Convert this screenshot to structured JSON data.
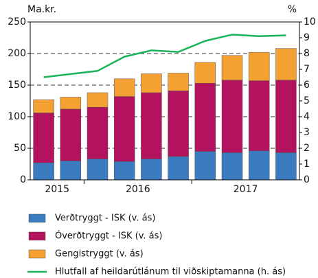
{
  "chart_data": {
    "type": "bar",
    "y_label": "Ma.kr.",
    "y2_label": "%",
    "categories": [
      null,
      null,
      null,
      null,
      null,
      null,
      null,
      null,
      null,
      null
    ],
    "year_groups": [
      {
        "label": "2015",
        "count": 2
      },
      {
        "label": "2016",
        "count": 4
      },
      {
        "label": "2017",
        "count": 4
      }
    ],
    "series": [
      {
        "name": "Verðtryggt - ISK (v. ás)",
        "color": "#3b7cc1",
        "values": [
          27,
          30,
          33,
          29,
          33,
          37,
          45,
          43,
          46,
          43
        ]
      },
      {
        "name": "Óverðtryggt - ISK (v. ás)",
        "color": "#b3135e",
        "values": [
          79,
          82,
          82,
          103,
          105,
          104,
          108,
          115,
          111,
          115
        ]
      },
      {
        "name": "Gengistryggt (v. ás)",
        "color": "#f5a033",
        "values": [
          21,
          19,
          23,
          28,
          30,
          28,
          33,
          39,
          45,
          50
        ]
      },
      {
        "name": "Hlutfall af heildarútlánum til viðskiptamanna (h. ás)",
        "color": "#1db35a",
        "type": "line",
        "axis": "y2",
        "values": [
          6.5,
          6.7,
          6.9,
          7.8,
          8.2,
          8.1,
          8.8,
          9.2,
          9.1,
          9.15
        ]
      }
    ],
    "ylim": [
      0,
      250
    ],
    "yticks": [
      0,
      50,
      100,
      150,
      200,
      250
    ],
    "y2lim": [
      0,
      10
    ],
    "y2ticks": [
      0,
      1,
      2,
      3,
      4,
      5,
      6,
      7,
      8,
      9,
      10
    ],
    "grid": true,
    "stacked": true
  }
}
